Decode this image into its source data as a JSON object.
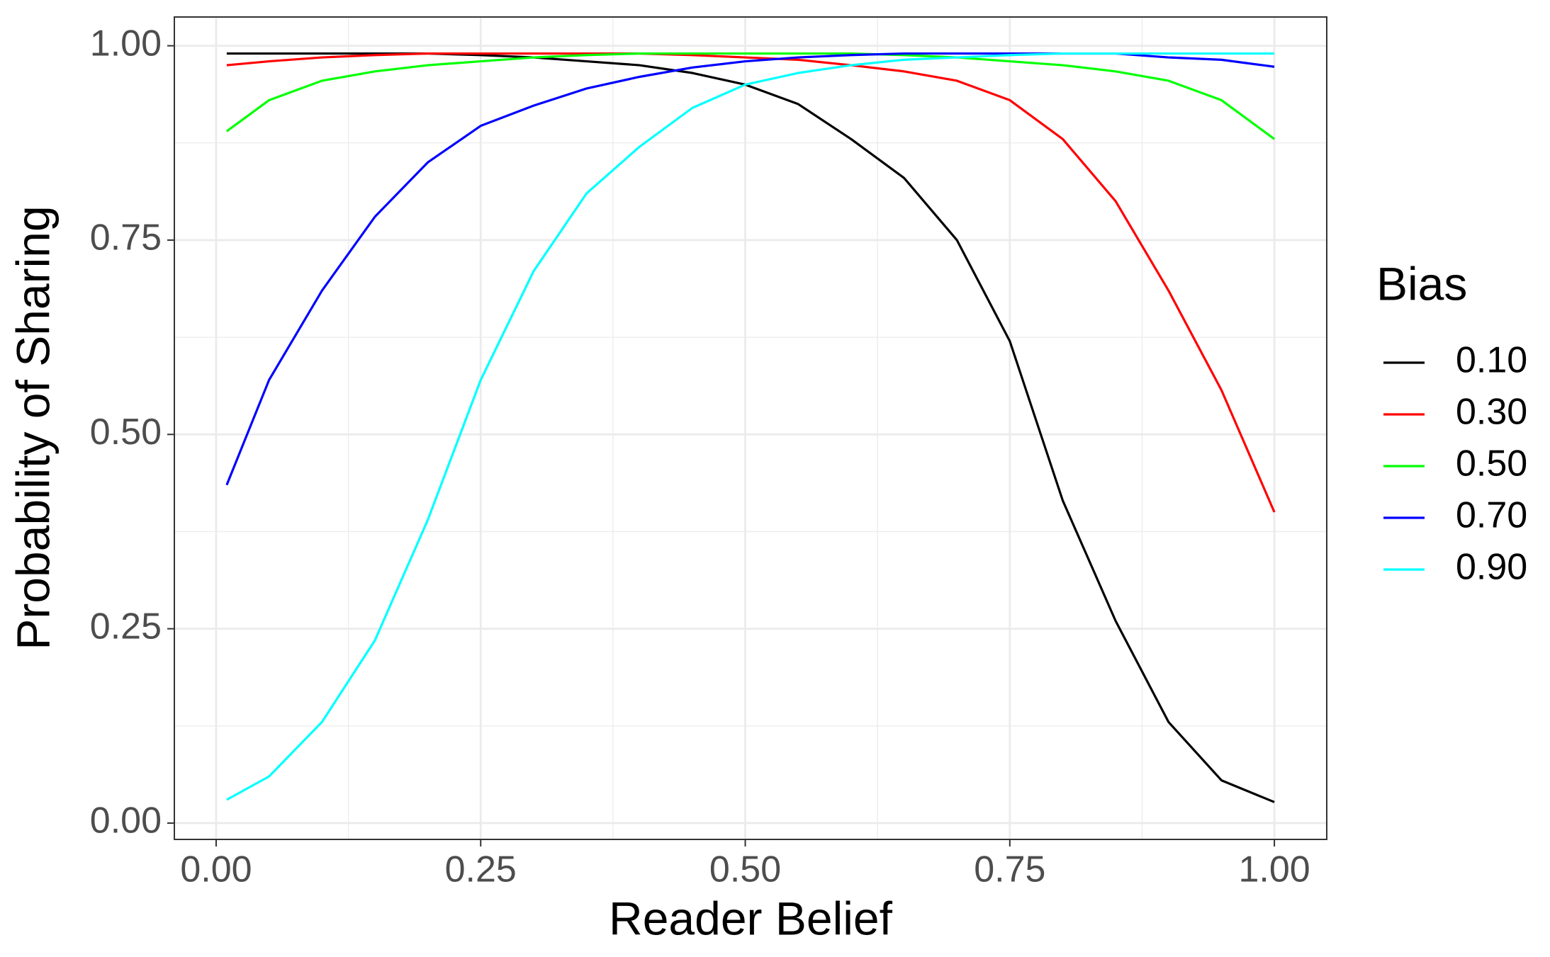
{
  "chart_data": {
    "type": "line",
    "x_label": "Reader Belief",
    "y_label": "Probability of Sharing",
    "legend_title": "Bias",
    "legend_position": "right",
    "grid": true,
    "xlim": [
      -0.0395,
      1.0495
    ],
    "ylim": [
      -0.021,
      1.037
    ],
    "xticks": [
      {
        "value": 0,
        "label": "0.00"
      },
      0.25,
      {
        "value": 0.5,
        "label": "0.50"
      },
      0.75,
      {
        "value": 1,
        "label": "1.00"
      }
    ],
    "yticks": [
      {
        "value": 0,
        "label": "0.00"
      },
      0.25,
      {
        "value": 0.5,
        "label": "0.50"
      },
      0.75,
      {
        "value": 1,
        "label": "1.00"
      }
    ],
    "x_minor_grid": [
      0.125,
      0.375,
      0.625,
      0.875
    ],
    "y_minor_grid": [
      0.125,
      0.375,
      0.625,
      0.875
    ],
    "x": [
      0.01,
      0.05,
      0.1,
      0.15,
      0.2,
      0.25,
      0.3,
      0.35,
      0.4,
      0.45,
      0.5,
      0.55,
      0.6,
      0.65,
      0.7,
      0.75,
      0.8,
      0.85,
      0.9,
      0.95,
      1.0
    ],
    "series": [
      {
        "name": "0.10",
        "color": "#000000",
        "values": [
          0.99,
          0.99,
          0.99,
          0.99,
          0.99,
          0.988,
          0.985,
          0.98,
          0.975,
          0.965,
          0.95,
          0.925,
          0.88,
          0.83,
          0.75,
          0.62,
          0.415,
          0.26,
          0.13,
          0.055,
          0.027
        ]
      },
      {
        "name": "0.30",
        "color": "#ff0000",
        "values": [
          0.975,
          0.98,
          0.985,
          0.988,
          0.99,
          0.99,
          0.99,
          0.99,
          0.99,
          0.988,
          0.985,
          0.982,
          0.975,
          0.967,
          0.955,
          0.93,
          0.88,
          0.8,
          0.685,
          0.557,
          0.4
        ]
      },
      {
        "name": "0.50",
        "color": "#00ff00",
        "values": [
          0.89,
          0.93,
          0.955,
          0.967,
          0.975,
          0.98,
          0.985,
          0.988,
          0.99,
          0.99,
          0.99,
          0.99,
          0.99,
          0.988,
          0.985,
          0.98,
          0.975,
          0.967,
          0.955,
          0.93,
          0.88
        ]
      },
      {
        "name": "0.70",
        "color": "#0000ff",
        "values": [
          0.435,
          0.57,
          0.685,
          0.78,
          0.85,
          0.897,
          0.923,
          0.945,
          0.96,
          0.972,
          0.98,
          0.985,
          0.988,
          0.99,
          0.99,
          0.99,
          0.99,
          0.99,
          0.985,
          0.982,
          0.973
        ]
      },
      {
        "name": "0.90",
        "color": "#00ffff",
        "values": [
          0.03,
          0.06,
          0.13,
          0.235,
          0.39,
          0.57,
          0.71,
          0.81,
          0.87,
          0.92,
          0.95,
          0.965,
          0.975,
          0.982,
          0.985,
          0.988,
          0.99,
          0.99,
          0.99,
          0.99,
          0.99
        ]
      }
    ]
  }
}
